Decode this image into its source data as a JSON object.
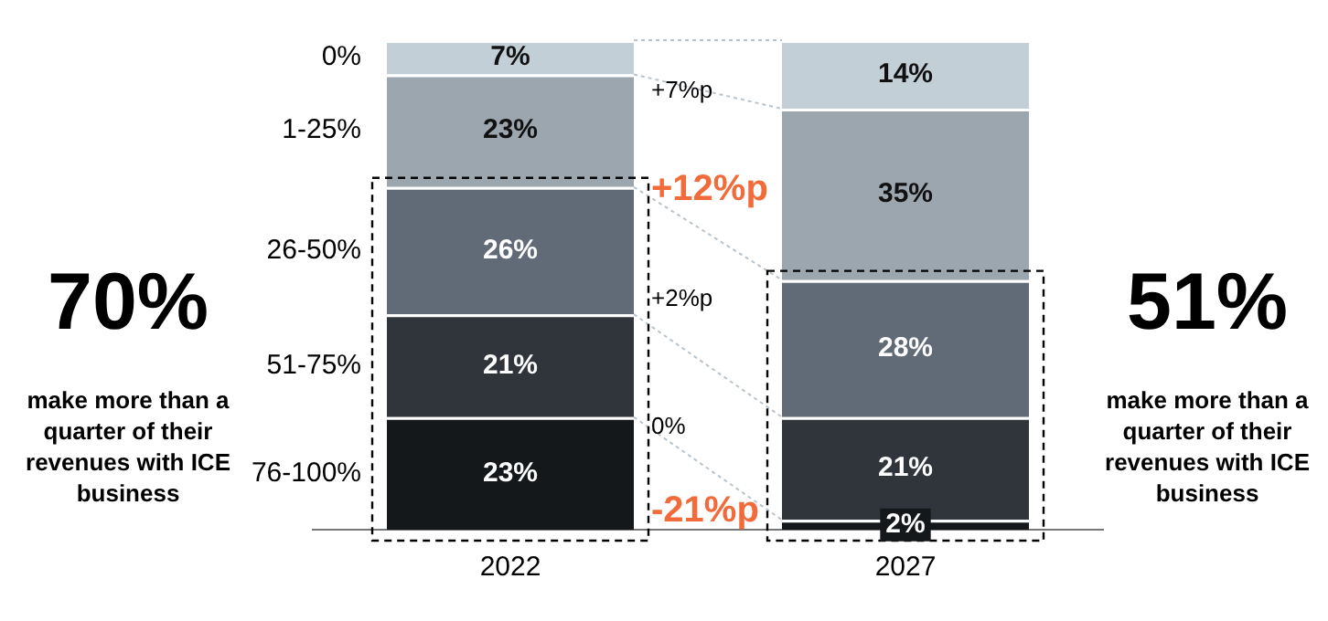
{
  "chart_data": {
    "type": "bar",
    "stacked": true,
    "legend": false,
    "grid": false,
    "categories": [
      "2022",
      "2027"
    ],
    "series": [
      {
        "name": "76-100%",
        "color": "#15181b",
        "values": [
          23,
          2
        ],
        "value_labels": [
          "23%",
          "2%"
        ]
      },
      {
        "name": "51-75%",
        "color": "#30343b",
        "values": [
          21,
          21
        ],
        "value_labels": [
          "21%",
          "21%"
        ]
      },
      {
        "name": "26-50%",
        "color": "#606b77",
        "values": [
          26,
          28
        ],
        "value_labels": [
          "26%",
          "28%"
        ]
      },
      {
        "name": "1-25%",
        "color": "#9ba6ae",
        "values": [
          23,
          35
        ],
        "value_labels": [
          "23%",
          "35%"
        ]
      },
      {
        "name": "0%",
        "color": "#c3cfd7",
        "values": [
          7,
          14
        ],
        "value_labels": [
          "7%",
          "14%"
        ]
      }
    ],
    "annotations": [
      "70%",
      "make more than a quarter of their revenues with ICE business",
      "+7%p",
      "+12%p",
      "+2%p",
      "0%",
      "-21%p",
      "51%",
      "make more than a quarter of their revenues with ICE business"
    ]
  }
}
